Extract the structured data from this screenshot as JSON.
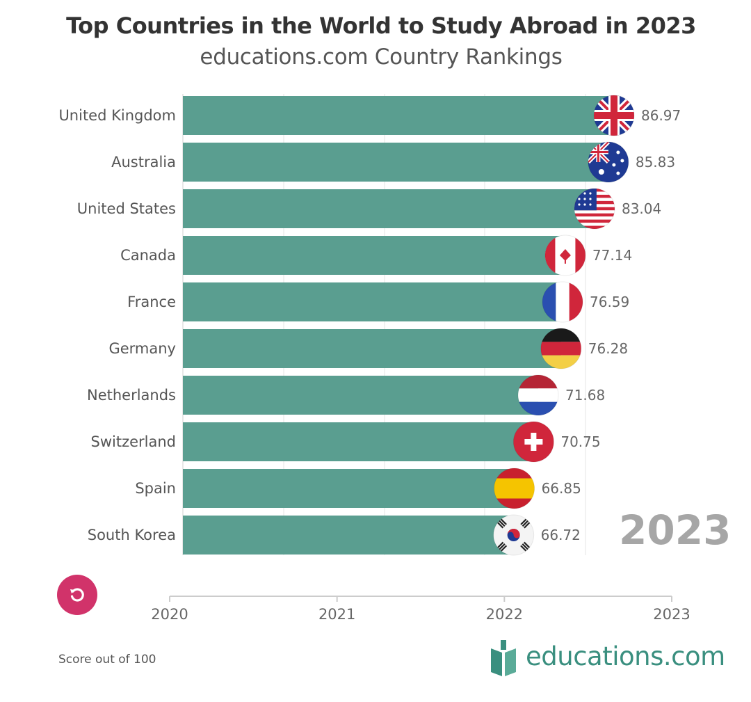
{
  "chart_data": {
    "type": "bar",
    "title": "Top Countries in the World to Study Abroad in 2023",
    "subtitle": "educations.com Country Rankings",
    "categories": [
      "United Kingdom",
      "Australia",
      "United States",
      "Canada",
      "France",
      "Germany",
      "Netherlands",
      "Switzerland",
      "Spain",
      "South Korea"
    ],
    "values": [
      86.97,
      85.83,
      83.04,
      77.14,
      76.59,
      76.28,
      71.68,
      70.75,
      66.85,
      66.72
    ],
    "value_labels": [
      "86.97",
      "85.83",
      "83.04",
      "77.14",
      "76.59",
      "76.28",
      "71.68",
      "70.75",
      "66.85",
      "66.72"
    ],
    "flags": [
      "uk-flag",
      "australia-flag",
      "us-flag",
      "canada-flag",
      "france-flag",
      "germany-flag",
      "netherlands-flag",
      "switzerland-flag",
      "spain-flag",
      "south-korea-flag"
    ],
    "orientation": "horizontal",
    "bar_color": "#5a9e90",
    "timeline": {
      "ticks": [
        "2020",
        "2021",
        "2022",
        "2023"
      ],
      "current": "2023"
    },
    "grid": true,
    "legend": "none"
  },
  "year_display": "2023",
  "footnote": "Score out of 100",
  "brand": {
    "name": "educations.com",
    "color": "#3a8f7f"
  },
  "replay": {
    "icon": "replay-icon",
    "color": "#d1336a"
  }
}
